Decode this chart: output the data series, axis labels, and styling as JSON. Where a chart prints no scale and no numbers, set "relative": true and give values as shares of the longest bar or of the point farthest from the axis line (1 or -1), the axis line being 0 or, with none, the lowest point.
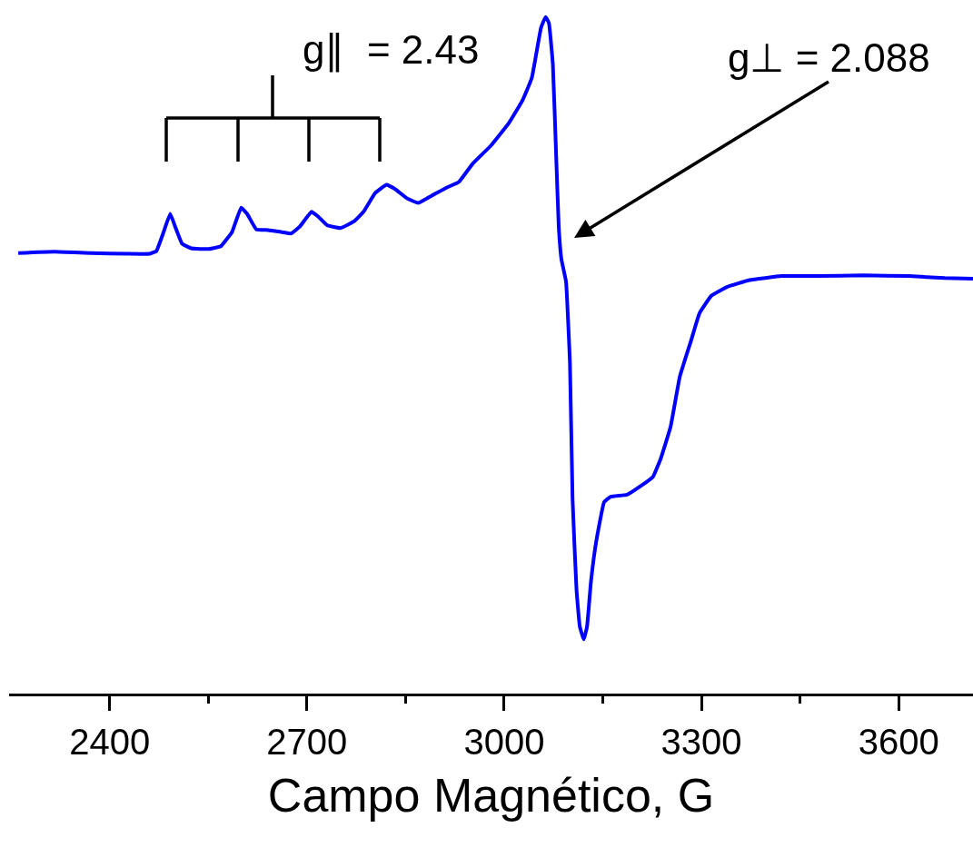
{
  "chart_data": {
    "type": "line",
    "xlabel": "Campo Magnético, G",
    "relative": true,
    "xlim": [
      2247,
      3713
    ],
    "xticks": [
      2400,
      {
        "value": 2550,
        "label": null
      },
      2700,
      {
        "value": 2850,
        "label": null
      },
      3000,
      {
        "value": 3150,
        "label": null
      },
      3300,
      {
        "value": 3450,
        "label": null
      },
      3600
    ],
    "x": [
      2261,
      2316,
      2372,
      2427,
      2461,
      2471,
      2482,
      2492,
      2500,
      2510,
      2524,
      2551,
      2569,
      2586,
      2600,
      2609,
      2623,
      2641,
      2662,
      2676,
      2689,
      2707,
      2717,
      2731,
      2751,
      2772,
      2786,
      2804,
      2821,
      2835,
      2852,
      2869,
      2890,
      2913,
      2931,
      2952,
      2980,
      3007,
      3028,
      3042,
      3056,
      3063,
      3068,
      3074,
      3079,
      3083,
      3087,
      3094,
      3100,
      3104,
      3110,
      3115,
      3121,
      3126,
      3132,
      3140,
      3152,
      3162,
      3187,
      3208,
      3226,
      3238,
      3253,
      3267,
      3284,
      3297,
      3315,
      3339,
      3373,
      3422,
      3477,
      3546,
      3615,
      3670,
      3713
    ],
    "series": [
      {
        "color": "#0000ff",
        "values": [
          0.651,
          0.653,
          0.651,
          0.65,
          0.65,
          0.654,
          0.682,
          0.709,
          0.689,
          0.665,
          0.658,
          0.657,
          0.661,
          0.682,
          0.718,
          0.709,
          0.686,
          0.685,
          0.682,
          0.68,
          0.69,
          0.712,
          0.705,
          0.692,
          0.688,
          0.698,
          0.712,
          0.74,
          0.752,
          0.745,
          0.732,
          0.725,
          0.736,
          0.748,
          0.756,
          0.783,
          0.81,
          0.843,
          0.877,
          0.91,
          0.984,
          1.0,
          0.991,
          0.93,
          0.796,
          0.689,
          0.642,
          0.609,
          0.488,
          0.287,
          0.153,
          0.099,
          0.08,
          0.099,
          0.166,
          0.225,
          0.283,
          0.291,
          0.294,
          0.307,
          0.32,
          0.347,
          0.394,
          0.468,
          0.521,
          0.562,
          0.588,
          0.601,
          0.611,
          0.617,
          0.617,
          0.618,
          0.617,
          0.614,
          0.613
        ]
      }
    ],
    "annotations": [
      "g∥  = 2.43",
      "g⊥ = 2.088"
    ],
    "marker": "none",
    "line_style": "solid"
  }
}
